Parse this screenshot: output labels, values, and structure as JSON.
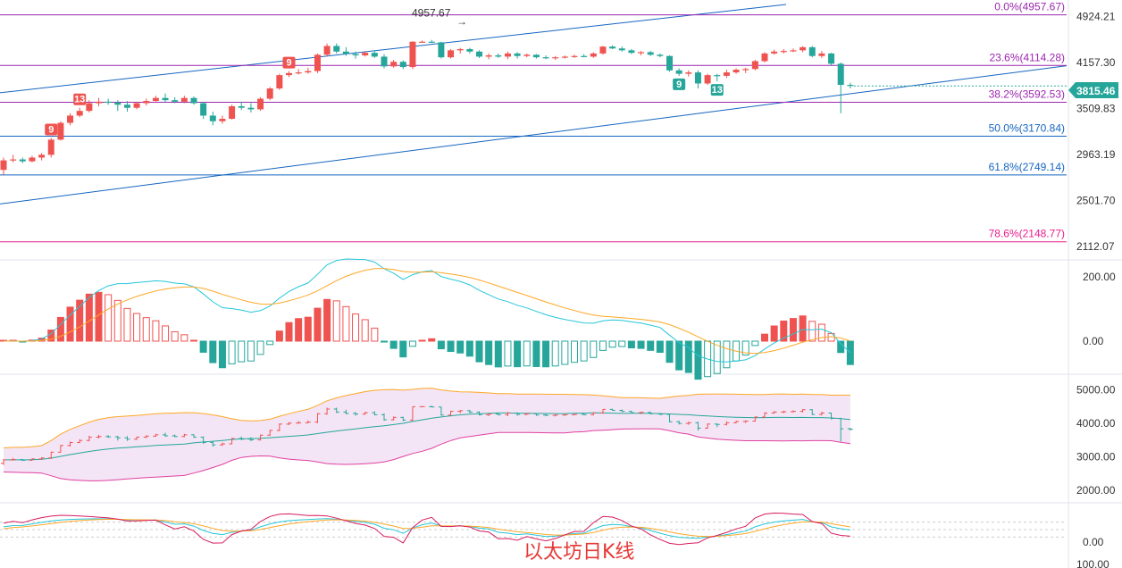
{
  "chart_data": {
    "type": "candlestick",
    "main_price_axis": {
      "ticks": [
        "4924.21",
        "4157.30",
        "3509.83",
        "2963.19",
        "2501.70",
        "2112.07"
      ],
      "min": 2050,
      "max": 5100,
      "scale": "log"
    },
    "last_price": "3815.46",
    "high_marker": "4957.67",
    "fib_levels": [
      {
        "label": "0.0%(4957.67)",
        "value": 4957.67,
        "color": "#9c27b0"
      },
      {
        "label": "23.6%(4114.28)",
        "value": 4114.28,
        "color": "#9c27b0"
      },
      {
        "label": "38.2%(3592.53)",
        "value": 3592.53,
        "color": "#9c27b0"
      },
      {
        "label": "50.0%(3170.84)",
        "value": 3170.84,
        "color": "#1565c0"
      },
      {
        "label": "61.8%(2749.14)",
        "value": 2749.14,
        "color": "#1565c0"
      },
      {
        "label": "78.6%(2148.77)",
        "value": 2148.77,
        "color": "#e91e8c"
      }
    ],
    "td_markers": [
      {
        "label": "9",
        "index": 5,
        "color": "#ef5350",
        "pos": "above"
      },
      {
        "label": "13",
        "index": 8,
        "color": "#ef5350",
        "pos": "above"
      },
      {
        "label": "9",
        "index": 30,
        "color": "#ef5350",
        "pos": "above"
      },
      {
        "label": "9",
        "index": 71,
        "color": "#26a69a",
        "pos": "below"
      },
      {
        "label": "13",
        "index": 75,
        "color": "#26a69a",
        "pos": "below"
      }
    ],
    "candles": [
      [
        2800,
        2930,
        2750,
        2900
      ],
      [
        2900,
        2960,
        2880,
        2910
      ],
      [
        2910,
        2930,
        2870,
        2890
      ],
      [
        2890,
        2950,
        2880,
        2930
      ],
      [
        2930,
        2980,
        2900,
        2960
      ],
      [
        2960,
        3150,
        2930,
        3130
      ],
      [
        3130,
        3350,
        3120,
        3330
      ],
      [
        3330,
        3450,
        3300,
        3420
      ],
      [
        3420,
        3520,
        3400,
        3480
      ],
      [
        3480,
        3620,
        3460,
        3580
      ],
      [
        3580,
        3650,
        3540,
        3600
      ],
      [
        3600,
        3640,
        3560,
        3590
      ],
      [
        3590,
        3620,
        3480,
        3560
      ],
      [
        3560,
        3610,
        3470,
        3520
      ],
      [
        3520,
        3600,
        3500,
        3580
      ],
      [
        3580,
        3640,
        3550,
        3610
      ],
      [
        3610,
        3680,
        3590,
        3650
      ],
      [
        3650,
        3710,
        3590,
        3620
      ],
      [
        3620,
        3660,
        3580,
        3600
      ],
      [
        3600,
        3680,
        3580,
        3650
      ],
      [
        3650,
        3670,
        3560,
        3580
      ],
      [
        3580,
        3600,
        3380,
        3420
      ],
      [
        3420,
        3470,
        3300,
        3350
      ],
      [
        3350,
        3420,
        3320,
        3380
      ],
      [
        3380,
        3560,
        3370,
        3540
      ],
      [
        3540,
        3600,
        3490,
        3520
      ],
      [
        3520,
        3580,
        3460,
        3500
      ],
      [
        3500,
        3660,
        3480,
        3640
      ],
      [
        3640,
        3800,
        3620,
        3780
      ],
      [
        3780,
        3990,
        3760,
        3970
      ],
      [
        3970,
        4030,
        3940,
        4000
      ],
      [
        4000,
        4060,
        3980,
        4010
      ],
      [
        4010,
        4080,
        3990,
        4030
      ],
      [
        4030,
        4300,
        4000,
        4280
      ],
      [
        4280,
        4460,
        4250,
        4420
      ],
      [
        4420,
        4460,
        4300,
        4330
      ],
      [
        4330,
        4400,
        4260,
        4290
      ],
      [
        4290,
        4330,
        4220,
        4270
      ],
      [
        4270,
        4340,
        4250,
        4310
      ],
      [
        4310,
        4350,
        4230,
        4250
      ],
      [
        4250,
        4290,
        4070,
        4100
      ],
      [
        4100,
        4200,
        4080,
        4170
      ],
      [
        4170,
        4190,
        4060,
        4090
      ],
      [
        4090,
        4500,
        4060,
        4490
      ],
      [
        4490,
        4510,
        4480,
        4490
      ],
      [
        4490,
        4520,
        4470,
        4480
      ],
      [
        4480,
        4490,
        4220,
        4240
      ],
      [
        4240,
        4370,
        4220,
        4350
      ],
      [
        4350,
        4390,
        4300,
        4370
      ],
      [
        4370,
        4390,
        4300,
        4330
      ],
      [
        4330,
        4350,
        4230,
        4250
      ],
      [
        4250,
        4300,
        4210,
        4270
      ],
      [
        4270,
        4300,
        4230,
        4250
      ],
      [
        4250,
        4330,
        4210,
        4300
      ],
      [
        4300,
        4320,
        4220,
        4260
      ],
      [
        4260,
        4300,
        4240,
        4280
      ],
      [
        4280,
        4290,
        4220,
        4240
      ],
      [
        4240,
        4270,
        4210,
        4230
      ],
      [
        4230,
        4260,
        4200,
        4240
      ],
      [
        4240,
        4270,
        4220,
        4250
      ],
      [
        4250,
        4280,
        4230,
        4260
      ],
      [
        4260,
        4290,
        4240,
        4250
      ],
      [
        4250,
        4320,
        4230,
        4300
      ],
      [
        4300,
        4420,
        4280,
        4410
      ],
      [
        4410,
        4430,
        4370,
        4380
      ],
      [
        4380,
        4410,
        4330,
        4350
      ],
      [
        4350,
        4370,
        4290,
        4310
      ],
      [
        4310,
        4340,
        4270,
        4320
      ],
      [
        4320,
        4340,
        4260,
        4280
      ],
      [
        4280,
        4300,
        4240,
        4260
      ],
      [
        4260,
        4270,
        4020,
        4040
      ],
      [
        4040,
        4070,
        3960,
        3990
      ],
      [
        3990,
        4040,
        3950,
        4010
      ],
      [
        4010,
        4040,
        3780,
        3850
      ],
      [
        3850,
        3990,
        3830,
        3970
      ],
      [
        3970,
        3990,
        3880,
        3960
      ],
      [
        3960,
        4050,
        3930,
        4010
      ],
      [
        4010,
        4070,
        3990,
        4050
      ],
      [
        4050,
        4080,
        4000,
        4060
      ],
      [
        4060,
        4200,
        4040,
        4180
      ],
      [
        4180,
        4320,
        4160,
        4300
      ],
      [
        4300,
        4360,
        4280,
        4330
      ],
      [
        4330,
        4370,
        4300,
        4340
      ],
      [
        4340,
        4380,
        4320,
        4350
      ],
      [
        4350,
        4420,
        4320,
        4400
      ],
      [
        4400,
        4420,
        4240,
        4260
      ],
      [
        4260,
        4340,
        4230,
        4300
      ],
      [
        4300,
        4310,
        4110,
        4140
      ],
      [
        4140,
        4160,
        3450,
        3830
      ],
      [
        3830,
        3860,
        3780,
        3815
      ]
    ],
    "macd_panel": {
      "ticks": [
        "200.00",
        "0.00"
      ]
    },
    "boll_panel": {
      "ticks": [
        "5000.00",
        "4000.00",
        "3000.00",
        "2000.00"
      ],
      "min": 1700,
      "max": 5300
    },
    "kdj_panel": {
      "ticks": [
        "0.00",
        "100.00"
      ]
    }
  },
  "watermark": "以太坊日K线"
}
